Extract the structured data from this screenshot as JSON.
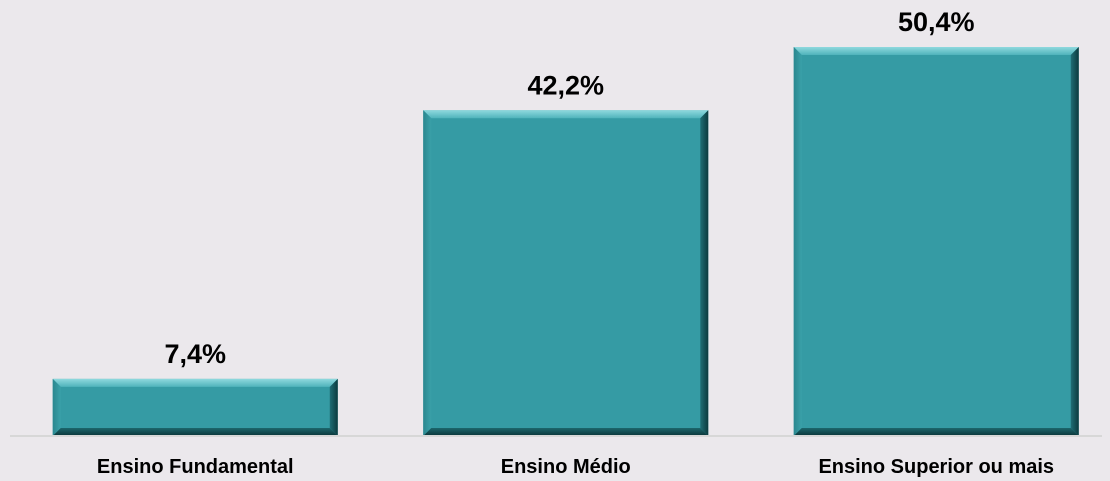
{
  "chart_data": {
    "type": "bar",
    "title": "",
    "xlabel": "",
    "ylabel": "",
    "categories": [
      "Ensino Fundamental",
      "Ensino Médio",
      "Ensino Superior ou mais"
    ],
    "values": [
      7.4,
      42.2,
      50.4
    ],
    "value_labels": [
      "7,4%",
      "42,2%",
      "50,4%"
    ],
    "ylim": [
      0,
      50.4
    ],
    "grid": false,
    "legend": "none",
    "colors": {
      "bar": "#359ba4",
      "bar_highlight": "#6cc7cd",
      "bar_shadow": "#0e3f44",
      "axis": "#d7d7d7",
      "background": "#ebe8ec"
    }
  }
}
